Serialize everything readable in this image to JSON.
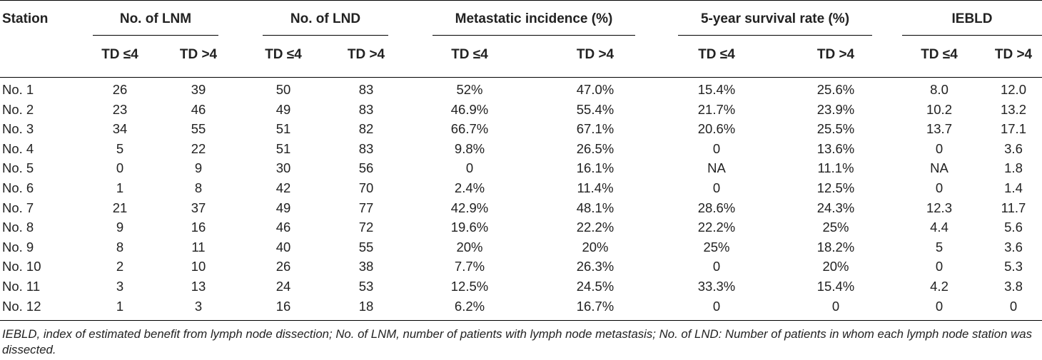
{
  "table": {
    "header": {
      "station": "Station",
      "groups": [
        "No. of LNM",
        "No. of LND",
        "Metastatic incidence (%)",
        "5-year survival rate (%)",
        "IEBLD"
      ],
      "sub": [
        "TD ≤4",
        "TD >4"
      ]
    },
    "rows": [
      [
        "No. 1",
        "26",
        "39",
        "50",
        "83",
        "52%",
        "47.0%",
        "15.4%",
        "25.6%",
        "8.0",
        "12.0"
      ],
      [
        "No. 2",
        "23",
        "46",
        "49",
        "83",
        "46.9%",
        "55.4%",
        "21.7%",
        "23.9%",
        "10.2",
        "13.2"
      ],
      [
        "No. 3",
        "34",
        "55",
        "51",
        "82",
        "66.7%",
        "67.1%",
        "20.6%",
        "25.5%",
        "13.7",
        "17.1"
      ],
      [
        "No. 4",
        "5",
        "22",
        "51",
        "83",
        "9.8%",
        "26.5%",
        "0",
        "13.6%",
        "0",
        "3.6"
      ],
      [
        "No. 5",
        "0",
        "9",
        "30",
        "56",
        "0",
        "16.1%",
        "NA",
        "11.1%",
        "NA",
        "1.8"
      ],
      [
        "No. 6",
        "1",
        "8",
        "42",
        "70",
        "2.4%",
        "11.4%",
        "0",
        "12.5%",
        "0",
        "1.4"
      ],
      [
        "No. 7",
        "21",
        "37",
        "49",
        "77",
        "42.9%",
        "48.1%",
        "28.6%",
        "24.3%",
        "12.3",
        "11.7"
      ],
      [
        "No. 8",
        "9",
        "16",
        "46",
        "72",
        "19.6%",
        "22.2%",
        "22.2%",
        "25%",
        "4.4",
        "5.6"
      ],
      [
        "No. 9",
        "8",
        "11",
        "40",
        "55",
        "20%",
        "20%",
        "25%",
        "18.2%",
        "5",
        "3.6"
      ],
      [
        "No. 10",
        "2",
        "10",
        "26",
        "38",
        "7.7%",
        "26.3%",
        "0",
        "20%",
        "0",
        "5.3"
      ],
      [
        "No. 11",
        "3",
        "13",
        "24",
        "53",
        "12.5%",
        "24.5%",
        "33.3%",
        "15.4%",
        "4.2",
        "3.8"
      ],
      [
        "No. 12",
        "1",
        "3",
        "16",
        "18",
        "6.2%",
        "16.7%",
        "0",
        "0",
        "0",
        "0"
      ]
    ]
  },
  "footnote": "IEBLD, index of estimated benefit from lymph node dissection; No. of LNM, number of patients with lymph node metastasis; No. of LND: Number of patients in whom each lymph node station was dissected."
}
